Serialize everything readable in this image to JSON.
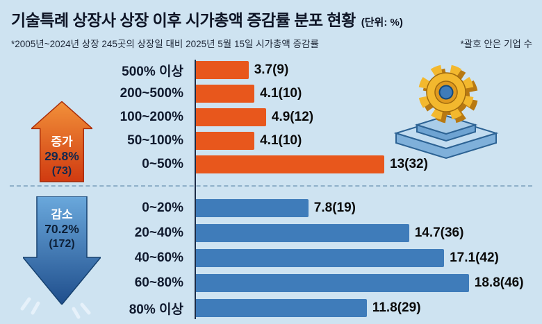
{
  "header": {
    "title": "기술특례 상장사 상장 이후 시가총액 증감률 분포 현황",
    "unit": "(단위: %)",
    "subtitle_left": "*2005년~2024년 상장 245곳의 상장일 대비 2025년 5월 15일 시가총액 증감률",
    "subtitle_right": "*괄호 안은 기업 수"
  },
  "summary": {
    "increase": {
      "label": "증가",
      "percent": "29.8%",
      "count": "(73)"
    },
    "decrease": {
      "label": "감소",
      "percent": "70.2%",
      "count": "(172)"
    }
  },
  "colors": {
    "background": "#cee3f1",
    "increase_bar": "#e8571c",
    "decrease_bar": "#3f7cba",
    "increase_arrow_top": "#f2913a",
    "increase_arrow_bottom": "#d03a10",
    "decrease_arrow_top": "#6aa8dc",
    "decrease_arrow_bottom": "#1f4e8c",
    "axis": "#1c2b45",
    "text": "#101a2e"
  },
  "icons": {
    "gear": "gear-on-hexagon-pedestal-icon",
    "increase_arrow": "arrow-up-icon",
    "decrease_arrow": "arrow-down-icon"
  },
  "chart_data": {
    "type": "bar",
    "orientation": "horizontal",
    "unit": "%",
    "title": "기술특례 상장사 상장 이후 시가총액 증감률 분포 현황",
    "xlim": [
      0,
      20
    ],
    "grid": false,
    "groups": [
      {
        "name": "증가",
        "share_percent": 29.8,
        "share_count": 73,
        "color": "#e8571c",
        "rows": [
          {
            "category": "500% 이상",
            "value": 3.7,
            "count": 9,
            "label": "3.7(9)"
          },
          {
            "category": "200~500%",
            "value": 4.1,
            "count": 10,
            "label": "4.1(10)"
          },
          {
            "category": "100~200%",
            "value": 4.9,
            "count": 12,
            "label": "4.9(12)"
          },
          {
            "category": "50~100%",
            "value": 4.1,
            "count": 10,
            "label": "4.1(10)"
          },
          {
            "category": "0~50%",
            "value": 13,
            "count": 32,
            "label": "13(32)"
          }
        ]
      },
      {
        "name": "감소",
        "share_percent": 70.2,
        "share_count": 172,
        "color": "#3f7cba",
        "rows": [
          {
            "category": "0~20%",
            "value": 7.8,
            "count": 19,
            "label": "7.8(19)"
          },
          {
            "category": "20~40%",
            "value": 14.7,
            "count": 36,
            "label": "14.7(36)"
          },
          {
            "category": "40~60%",
            "value": 17.1,
            "count": 42,
            "label": "17.1(42)"
          },
          {
            "category": "60~80%",
            "value": 18.8,
            "count": 46,
            "label": "18.8(46)"
          },
          {
            "category": "80% 이상",
            "value": 11.8,
            "count": 29,
            "label": "11.8(29)"
          }
        ]
      }
    ]
  }
}
